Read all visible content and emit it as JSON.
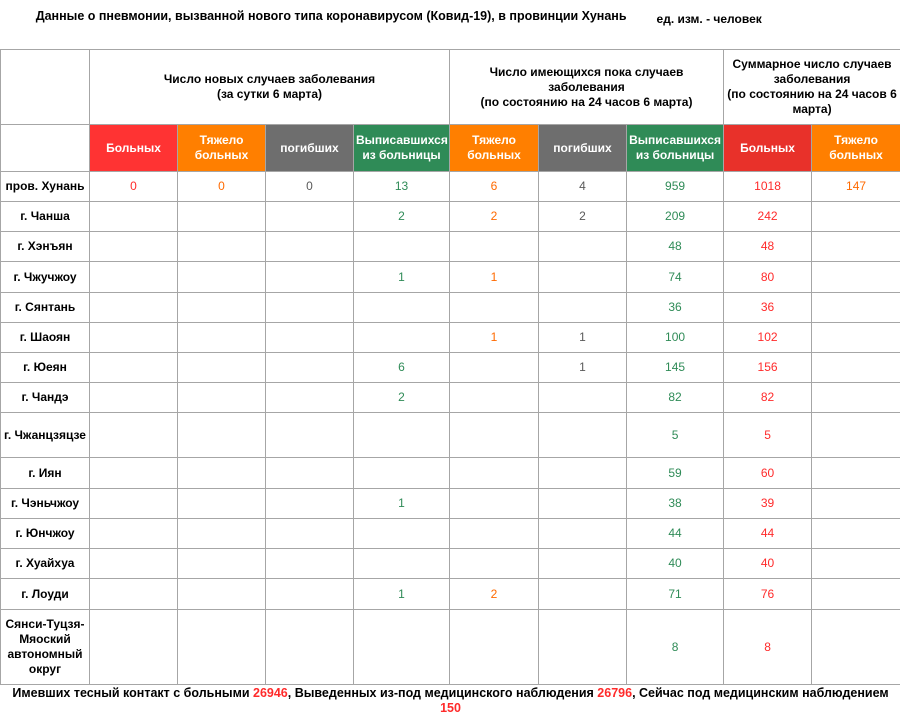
{
  "title": "Данные о пневмонии, вызванной нового типа коронавирусом (Ковид-19), в провинции Хунань",
  "unit": "ед. изм. - человек",
  "groups": {
    "new_cases": "Число новых случаев заболевания\n(за сутки 6 марта)",
    "current_cases": "Число имеющихся пока случаев заболевания\n(по состоянию на 24 часов 6 марта)",
    "total_cases": "Суммарное число случаев заболевания\n(по состоянию на 24 часов 6 марта)"
  },
  "columns": [
    {
      "label": "Больных",
      "color": "#ff3333"
    },
    {
      "label": "Тяжело больных",
      "color": "#ff7f00"
    },
    {
      "label": "погибших",
      "color": "#6e6e6e"
    },
    {
      "label": "Выписавшихся из больницы",
      "color": "#2f8b57"
    },
    {
      "label": "Тяжело больных",
      "color": "#ff7f00"
    },
    {
      "label": "погибших",
      "color": "#6e6e6e"
    },
    {
      "label": "Выписавшихся из больницы",
      "color": "#2f8b57"
    },
    {
      "label": "Больных",
      "color": "#e8312a"
    },
    {
      "label": "Тяжело больных",
      "color": "#ff7f00"
    }
  ],
  "rows": [
    {
      "name": "пров. Хунань",
      "values": [
        "0",
        "0",
        "0",
        "13",
        "6",
        "4",
        "959",
        "1018",
        "147"
      ]
    },
    {
      "name": "г. Чанша",
      "values": [
        "",
        "",
        "",
        "2",
        "2",
        "2",
        "209",
        "242",
        ""
      ]
    },
    {
      "name": "г. Хэнъян",
      "values": [
        "",
        "",
        "",
        "",
        "",
        "",
        "48",
        "48",
        ""
      ]
    },
    {
      "name": "г. Чжучжоу",
      "values": [
        "",
        "",
        "",
        "1",
        "1",
        "",
        "74",
        "80",
        ""
      ]
    },
    {
      "name": "г. Сянтань",
      "values": [
        "",
        "",
        "",
        "",
        "",
        "",
        "36",
        "36",
        ""
      ]
    },
    {
      "name": "г. Шаоян",
      "values": [
        "",
        "",
        "",
        "",
        "1",
        "1",
        "100",
        "102",
        ""
      ]
    },
    {
      "name": "г. Юеян",
      "values": [
        "",
        "",
        "",
        "6",
        "",
        "1",
        "145",
        "156",
        ""
      ]
    },
    {
      "name": "г. Чандэ",
      "values": [
        "",
        "",
        "",
        "2",
        "",
        "",
        "82",
        "82",
        ""
      ]
    },
    {
      "name": "г. Чжанцзяцзе",
      "values": [
        "",
        "",
        "",
        "",
        "",
        "",
        "5",
        "5",
        ""
      ]
    },
    {
      "name": "г. Иян",
      "values": [
        "",
        "",
        "",
        "",
        "",
        "",
        "59",
        "60",
        ""
      ]
    },
    {
      "name": "г. Чэньчжоу",
      "values": [
        "",
        "",
        "",
        "1",
        "",
        "",
        "38",
        "39",
        ""
      ]
    },
    {
      "name": "г. Юнчжоу",
      "values": [
        "",
        "",
        "",
        "",
        "",
        "",
        "44",
        "44",
        ""
      ]
    },
    {
      "name": "г. Хуайхуа",
      "values": [
        "",
        "",
        "",
        "",
        "",
        "",
        "40",
        "40",
        ""
      ]
    },
    {
      "name": "г. Лоуди",
      "values": [
        "",
        "",
        "",
        "1",
        "2",
        "",
        "71",
        "76",
        ""
      ]
    },
    {
      "name": "Сянси-Туцзя-Мяоский автономный округ",
      "values": [
        "",
        "",
        "",
        "",
        "",
        "",
        "8",
        "8",
        ""
      ]
    }
  ],
  "footer": {
    "contacts_label": "Имевших тесный контакт с больными",
    "contacts_value": "26946",
    "released_label": ", Выведенных из-под медицинского наблюдения",
    "released_value": "26796",
    "observed_label": ", Сейчас под медицинским наблюдением",
    "observed_value": "150"
  }
}
